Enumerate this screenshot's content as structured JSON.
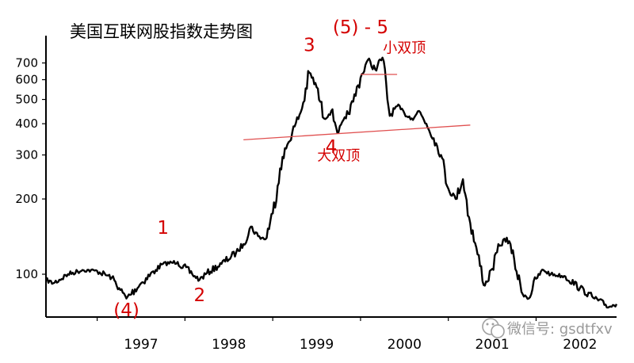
{
  "chart_data": {
    "type": "line",
    "title": "美国互联网股指数走势图",
    "xlabel": "",
    "ylabel": "",
    "scale": "log",
    "ylim": [
      65,
      900
    ],
    "xlim": [
      "1996-06",
      "2002-12"
    ],
    "yticks": [
      "100",
      "200",
      "300",
      "400",
      "500",
      "600",
      "700"
    ],
    "xticks": [
      "1997",
      "1998",
      "1999",
      "2000",
      "2001",
      "2002"
    ],
    "grid": false,
    "series": [
      {
        "name": "",
        "points": [
          [
            "1996-06",
            95
          ],
          [
            "1996-07",
            92
          ],
          [
            "1996-09",
            100
          ],
          [
            "1996-11",
            104
          ],
          [
            "1997-01",
            103
          ],
          [
            "1997-03",
            97
          ],
          [
            "1997-04",
            88
          ],
          [
            "1997-05",
            80
          ],
          [
            "1997-07",
            92
          ],
          [
            "1997-09",
            104
          ],
          [
            "1997-10",
            110
          ],
          [
            "1997-12",
            112
          ],
          [
            "1998-02",
            100
          ],
          [
            "1998-03",
            95
          ],
          [
            "1998-04",
            101
          ],
          [
            "1998-06",
            110
          ],
          [
            "1998-08",
            122
          ],
          [
            "1998-09",
            132
          ],
          [
            "1998-10",
            155
          ],
          [
            "1998-11",
            142
          ],
          [
            "1998-12",
            138
          ],
          [
            "1999-01",
            175
          ],
          [
            "1999-02",
            265
          ],
          [
            "1999-03",
            330
          ],
          [
            "1999-04",
            390
          ],
          [
            "1999-05",
            460
          ],
          [
            "1999-06",
            640
          ],
          [
            "1999-07",
            560
          ],
          [
            "1999-08",
            420
          ],
          [
            "1999-09",
            450
          ],
          [
            "1999-10",
            370
          ],
          [
            "1999-11",
            420
          ],
          [
            "1999-12",
            490
          ],
          [
            "2000-01",
            610
          ],
          [
            "2000-02",
            720
          ],
          [
            "2000-03",
            660
          ],
          [
            "2000-04",
            735
          ],
          [
            "2000-05",
            430
          ],
          [
            "2000-06",
            470
          ],
          [
            "2000-07",
            440
          ],
          [
            "2000-08",
            420
          ],
          [
            "2000-09",
            450
          ],
          [
            "2000-10",
            400
          ],
          [
            "2000-11",
            350
          ],
          [
            "2000-12",
            300
          ],
          [
            "2001-01",
            220
          ],
          [
            "2001-02",
            200
          ],
          [
            "2001-03",
            240
          ],
          [
            "2001-04",
            160
          ],
          [
            "2001-05",
            120
          ],
          [
            "2001-06",
            90
          ],
          [
            "2001-07",
            105
          ],
          [
            "2001-08",
            130
          ],
          [
            "2001-09",
            140
          ],
          [
            "2001-10",
            115
          ],
          [
            "2001-11",
            85
          ],
          [
            "2001-12",
            80
          ],
          [
            "2002-01",
            96
          ],
          [
            "2002-02",
            104
          ],
          [
            "2002-03",
            100
          ],
          [
            "2002-05",
            98
          ],
          [
            "2002-07",
            88
          ],
          [
            "2002-09",
            80
          ],
          [
            "2002-11",
            74
          ],
          [
            "2002-12",
            76
          ]
        ]
      }
    ],
    "annotations": [
      {
        "text": "1",
        "x": "1997-10",
        "y": 145,
        "color": "#d40000"
      },
      {
        "text": "2",
        "x": "1998-03",
        "y": 78,
        "color": "#d40000"
      },
      {
        "text": "(4)",
        "x": "1997-05",
        "y": 68,
        "color": "#d40000"
      },
      {
        "text": "3",
        "x": "1999-06",
        "y": 780,
        "color": "#d40000"
      },
      {
        "text": "(5) - 5",
        "x": "2000-01",
        "y": 920,
        "color": "#d40000"
      },
      {
        "text": "4",
        "x": "1999-09",
        "y": 305,
        "color": "#d40000"
      },
      {
        "text": "小双顶",
        "x": "2000-07",
        "y": 770,
        "color": "#d40000"
      },
      {
        "text": "大双顶",
        "x": "1999-10",
        "y": 285,
        "color": "#d40000"
      }
    ],
    "trendlines": [
      {
        "from": [
          "2000-01",
          630
        ],
        "to": [
          "2000-06",
          630
        ],
        "color": "#e05050"
      },
      {
        "from": [
          "1998-09",
          345
        ],
        "to": [
          "2001-04",
          395
        ],
        "color": "#e05050"
      }
    ]
  },
  "watermark": {
    "text": "微信号: gsdtfxv",
    "icon": "wechat-icon"
  }
}
